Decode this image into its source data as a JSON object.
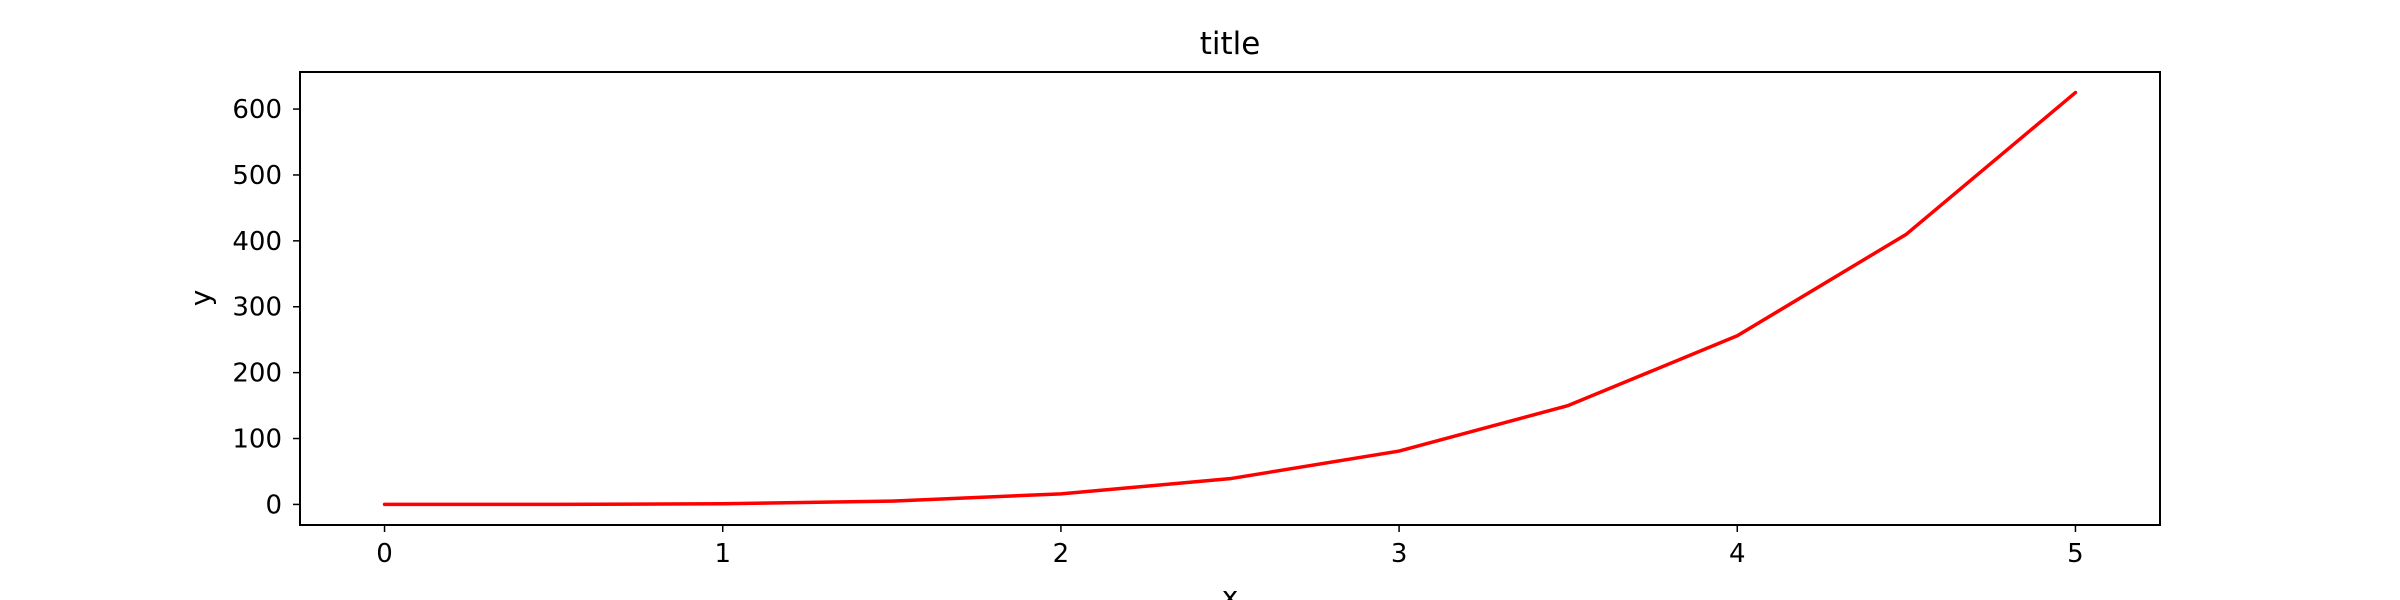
{
  "chart_data": {
    "type": "line",
    "title": "title",
    "xlabel": "x",
    "ylabel": "y",
    "xlim": [
      -0.25,
      5.25
    ],
    "ylim": [
      -31.25,
      656.25
    ],
    "x_ticks": [
      0,
      1,
      2,
      3,
      4,
      5
    ],
    "y_ticks": [
      0,
      100,
      200,
      300,
      400,
      500,
      600
    ],
    "x_tick_labels": [
      "0",
      "1",
      "2",
      "3",
      "4",
      "5"
    ],
    "y_tick_labels": [
      "0",
      "100",
      "200",
      "300",
      "400",
      "500",
      "600"
    ],
    "grid": false,
    "legend": "none",
    "x": [
      0,
      0.5,
      1,
      1.5,
      2,
      2.5,
      3,
      3.5,
      4,
      4.5,
      5
    ],
    "series": [
      {
        "color": "#ff0000",
        "values": [
          0,
          0.0625,
          1,
          5.0625,
          16,
          39.0625,
          81,
          150.0625,
          256,
          410.0625,
          625
        ]
      }
    ]
  }
}
